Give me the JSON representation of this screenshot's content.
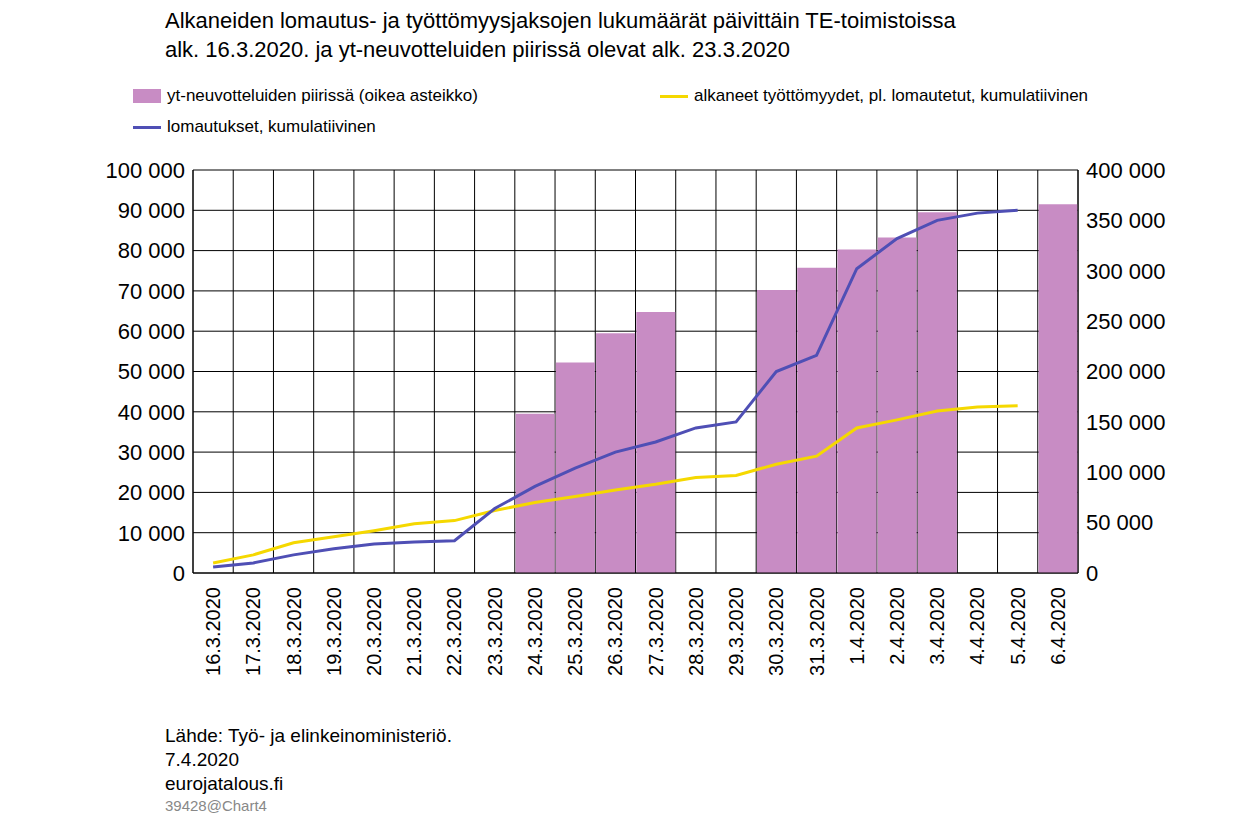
{
  "chart_data": {
    "type": "bar",
    "title": "Alkaneiden lomautus- ja työttömyysjaksojen lukumäärät päivittäin TE-toimistoissa\nalk. 16.3.2020. ja yt-neuvotteluiden piirissä olevat alk. 23.3.2020",
    "categories": [
      "16.3.2020",
      "17.3.2020",
      "18.3.2020",
      "19.3.2020",
      "20.3.2020",
      "21.3.2020",
      "22.3.2020",
      "23.3.2020",
      "24.3.2020",
      "25.3.2020",
      "26.3.2020",
      "27.3.2020",
      "28.3.2020",
      "29.3.2020",
      "30.3.2020",
      "31.3.2020",
      "1.4.2020",
      "2.4.2020",
      "3.4.2020",
      "4.4.2020",
      "5.4.2020",
      "6.4.2020"
    ],
    "series": [
      {
        "name": "yt-neuvotteluiden piirissä (oikea asteikko)",
        "type": "bar",
        "axis": "y2",
        "color": "#c88cc4",
        "values": [
          null,
          null,
          null,
          null,
          null,
          null,
          null,
          null,
          158000,
          209000,
          238000,
          259000,
          null,
          null,
          281000,
          303000,
          321000,
          333000,
          358000,
          null,
          null,
          366000
        ]
      },
      {
        "name": "alkaneet työttömyydet, pl. lomautetut, kumulatiivinen",
        "type": "line",
        "color": "#f5d800",
        "values": [
          2500,
          4500,
          7500,
          9000,
          10500,
          12200,
          13000,
          15500,
          17500,
          19000,
          20600,
          22000,
          23700,
          24200,
          27000,
          29000,
          36000,
          38000,
          40200,
          41200,
          41500,
          null
        ]
      },
      {
        "name": "lomautukset, kumulatiivinen",
        "type": "line",
        "color": "#4f4fb5",
        "values": [
          1500,
          2500,
          4500,
          6000,
          7200,
          7700,
          8000,
          16000,
          21500,
          26000,
          30000,
          32500,
          36000,
          37500,
          50000,
          54000,
          75500,
          83000,
          87500,
          89300,
          90000,
          null
        ]
      }
    ],
    "ylim": [
      0,
      100000
    ],
    "yticks": [
      0,
      {
        "value": 10000,
        "label": "10 000"
      },
      {
        "value": 20000,
        "label": "20 000"
      },
      {
        "value": 30000,
        "label": "30 000"
      },
      {
        "value": 40000,
        "label": "40 000"
      },
      {
        "value": 50000,
        "label": "50 000"
      },
      {
        "value": 60000,
        "label": "60 000"
      },
      {
        "value": 70000,
        "label": "70 000"
      },
      {
        "value": 80000,
        "label": "80 000"
      },
      {
        "value": 90000,
        "label": "90 000"
      },
      {
        "value": 100000,
        "label": "100 000"
      }
    ],
    "y2lim": [
      0,
      400000
    ],
    "y2ticks": [
      0,
      {
        "value": 50000,
        "label": "50 000"
      },
      {
        "value": 100000,
        "label": "100 000"
      },
      {
        "value": 150000,
        "label": "150 000"
      },
      {
        "value": 200000,
        "label": "200 000"
      },
      {
        "value": 250000,
        "label": "250 000"
      },
      {
        "value": 300000,
        "label": "300 000"
      },
      {
        "value": 350000,
        "label": "350 000"
      },
      {
        "value": 400000,
        "label": "400 000"
      }
    ],
    "grid": true,
    "legend": "top",
    "annotations": [
      "Lähde: Työ- ja elinkeinoministeriö.",
      "7.4.2020",
      "eurojatalous.fi",
      "39428@Chart4"
    ]
  }
}
